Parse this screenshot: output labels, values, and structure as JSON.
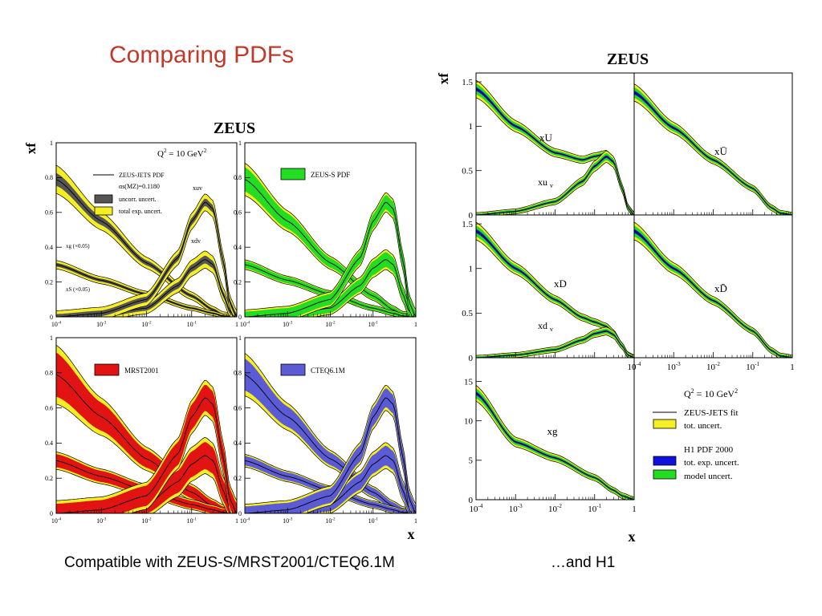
{
  "slide": {
    "title": "Comparing PDFs",
    "caption_left": "Compatible with ZEUS-S/MRST2001/CTEQ6.1M",
    "caption_right": "…and  H1"
  },
  "colors": {
    "title": "#c0392b",
    "yellow": "#f5ee25",
    "green": "#22dd22",
    "red": "#e21313",
    "blue_cteq": "#5b5bd6",
    "blue_h1": "#1111dd"
  },
  "chart_data": [
    {
      "type": "line",
      "title": "ZEUS",
      "ylabel": "xf",
      "xlabel": "x",
      "x_scale": "log",
      "xlim": [
        0.0001,
        1
      ],
      "ylim": [
        0,
        1
      ],
      "grid": false,
      "x_ticks": [
        "10-4",
        "10-3",
        "10-2",
        "10-1",
        "1"
      ],
      "y_ticks": [
        "0",
        "0.2",
        "0.4",
        "0.6",
        "0.8",
        "1"
      ],
      "q2_label": "Q2 = 10 GeV2",
      "panels": [
        {
          "name": "ZEUS-JETS",
          "legend": [
            "ZEUS-JETS PDF",
            "αs(MZ)=0.1180",
            "uncorr. uncert.",
            "total exp. uncert."
          ],
          "annotations": [
            "xuv",
            "xdv",
            "xg (×0.05)",
            "xS (×0.05)"
          ],
          "band_color": "#f5ee25"
        },
        {
          "name": "ZEUS-S",
          "legend": [
            "ZEUS-S PDF"
          ],
          "band_color": "#22dd22"
        },
        {
          "name": "MRST2001",
          "legend": [
            "MRST2001"
          ],
          "band_color": "#e21313"
        },
        {
          "name": "CTEQ6.1M",
          "legend": [
            "CTEQ6.1M"
          ],
          "band_color": "#5b5bd6"
        }
      ],
      "series": [
        {
          "label": "xuv",
          "x": [
            0.0001,
            0.001,
            0.01,
            0.05,
            0.1,
            0.2,
            0.3,
            0.5,
            0.7,
            1
          ],
          "values": [
            0.0,
            0.02,
            0.1,
            0.34,
            0.55,
            0.66,
            0.62,
            0.32,
            0.08,
            0
          ]
        },
        {
          "label": "xdv",
          "x": [
            0.0001,
            0.001,
            0.01,
            0.05,
            0.1,
            0.2,
            0.3,
            0.5,
            0.7,
            1
          ],
          "values": [
            0.0,
            0.01,
            0.05,
            0.18,
            0.28,
            0.33,
            0.3,
            0.13,
            0.03,
            0
          ]
        },
        {
          "label": "xg (×0.05)",
          "x": [
            0.0001,
            0.001,
            0.01,
            0.1,
            0.3,
            0.5,
            1
          ],
          "values": [
            0.79,
            0.55,
            0.31,
            0.12,
            0.04,
            0.01,
            0
          ]
        },
        {
          "label": "xS (×0.05)",
          "x": [
            0.0001,
            0.001,
            0.01,
            0.1,
            0.3,
            0.5,
            1
          ],
          "values": [
            0.3,
            0.21,
            0.13,
            0.05,
            0.02,
            0.005,
            0
          ]
        }
      ]
    },
    {
      "type": "line",
      "title": "ZEUS",
      "ylabel": "xf",
      "xlabel": "x",
      "x_scale": "log",
      "xlim": [
        0.0001,
        1
      ],
      "grid": false,
      "x_ticks": [
        "10-4",
        "10-3",
        "10-2",
        "10-1",
        "1"
      ],
      "q2_label": "Q2 = 10 GeV2",
      "legend": [
        {
          "label": "ZEUS-JETS fit",
          "kind": "line"
        },
        {
          "label": "tot. uncert.",
          "kind": "box",
          "color": "#f5ee25"
        },
        {
          "label": "H1 PDF 2000",
          "kind": "heading"
        },
        {
          "label": "tot. exp. uncert.",
          "kind": "box",
          "color": "#1111dd"
        },
        {
          "label": "model uncert.",
          "kind": "box",
          "color": "#22dd22"
        }
      ],
      "panels": [
        {
          "name": "xU",
          "ylim": [
            0,
            1.6
          ],
          "y_ticks": [
            "0",
            "0.5",
            "1",
            "1.5"
          ],
          "series": [
            {
              "label": "xU",
              "x": [
                0.0001,
                0.001,
                0.01,
                0.05,
                0.1,
                0.2,
                0.3,
                0.5,
                0.7,
                1
              ],
              "values": [
                1.42,
                1.0,
                0.7,
                0.62,
                0.66,
                0.69,
                0.6,
                0.3,
                0.08,
                0
              ]
            },
            {
              "label": "xuv",
              "x": [
                0.0001,
                0.001,
                0.01,
                0.05,
                0.1,
                0.2,
                0.3,
                0.5,
                0.7,
                1
              ],
              "values": [
                0.0,
                0.04,
                0.15,
                0.38,
                0.55,
                0.66,
                0.6,
                0.3,
                0.08,
                0
              ]
            }
          ]
        },
        {
          "name": "xŪ",
          "ylim": [
            0,
            1.6
          ],
          "y_ticks": [],
          "series": [
            {
              "label": "xŪ",
              "x": [
                0.0001,
                0.001,
                0.01,
                0.1,
                0.3,
                0.5,
                1
              ],
              "values": [
                1.38,
                0.98,
                0.62,
                0.3,
                0.08,
                0.02,
                0
              ]
            }
          ]
        },
        {
          "name": "xD",
          "ylim": [
            0,
            1.6
          ],
          "y_ticks": [
            "0",
            "0.5",
            "1",
            "1.5"
          ],
          "series": [
            {
              "label": "xD",
              "x": [
                0.0001,
                0.001,
                0.01,
                0.05,
                0.1,
                0.2,
                0.3,
                0.5,
                0.7,
                1
              ],
              "values": [
                1.42,
                1.0,
                0.65,
                0.45,
                0.4,
                0.35,
                0.28,
                0.13,
                0.03,
                0
              ]
            },
            {
              "label": "xdv",
              "x": [
                0.0001,
                0.001,
                0.01,
                0.05,
                0.1,
                0.2,
                0.3,
                0.5,
                0.7,
                1
              ],
              "values": [
                0.0,
                0.03,
                0.09,
                0.2,
                0.27,
                0.3,
                0.26,
                0.13,
                0.03,
                0
              ]
            }
          ]
        },
        {
          "name": "xD̄",
          "ylim": [
            0,
            1.6
          ],
          "y_ticks": [],
          "series": [
            {
              "label": "xD̄",
              "x": [
                0.0001,
                0.001,
                0.01,
                0.1,
                0.3,
                0.5,
                1
              ],
              "values": [
                1.42,
                1.0,
                0.64,
                0.3,
                0.08,
                0.02,
                0
              ]
            }
          ]
        },
        {
          "name": "xg",
          "ylim": [
            0,
            18
          ],
          "y_ticks": [
            "0",
            "5",
            "10",
            "15"
          ],
          "series": [
            {
              "label": "xg",
              "x": [
                0.0001,
                0.001,
                0.01,
                0.1,
                0.3,
                0.5,
                1
              ],
              "values": [
                13.5,
                7.3,
                5.3,
                2.8,
                1.2,
                0.5,
                0
              ]
            }
          ]
        }
      ]
    }
  ]
}
